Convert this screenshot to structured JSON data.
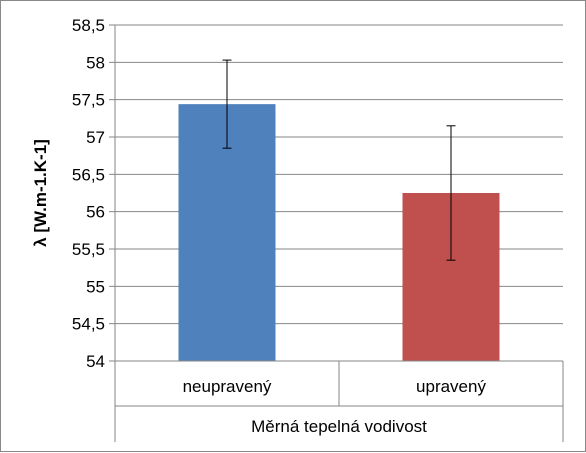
{
  "chart_data": {
    "type": "bar",
    "title": "",
    "ylabel": "λ [W.m-1.K-1]",
    "xlabel": "Měrná tepelná vodivost",
    "categories": [
      "neupravený",
      "upravený"
    ],
    "values": [
      57.44,
      56.25
    ],
    "error_low": [
      56.85,
      55.35
    ],
    "error_high": [
      58.03,
      57.15
    ],
    "colors": [
      "#4F81BD",
      "#C0504D"
    ],
    "ylim": [
      54,
      58.5
    ],
    "ytick_step": 0.5,
    "ytick_labels": [
      "54",
      "54,5",
      "55",
      "55,5",
      "56",
      "56,5",
      "57",
      "57,5",
      "58",
      "58,5"
    ],
    "grid": true,
    "legend": "none"
  }
}
